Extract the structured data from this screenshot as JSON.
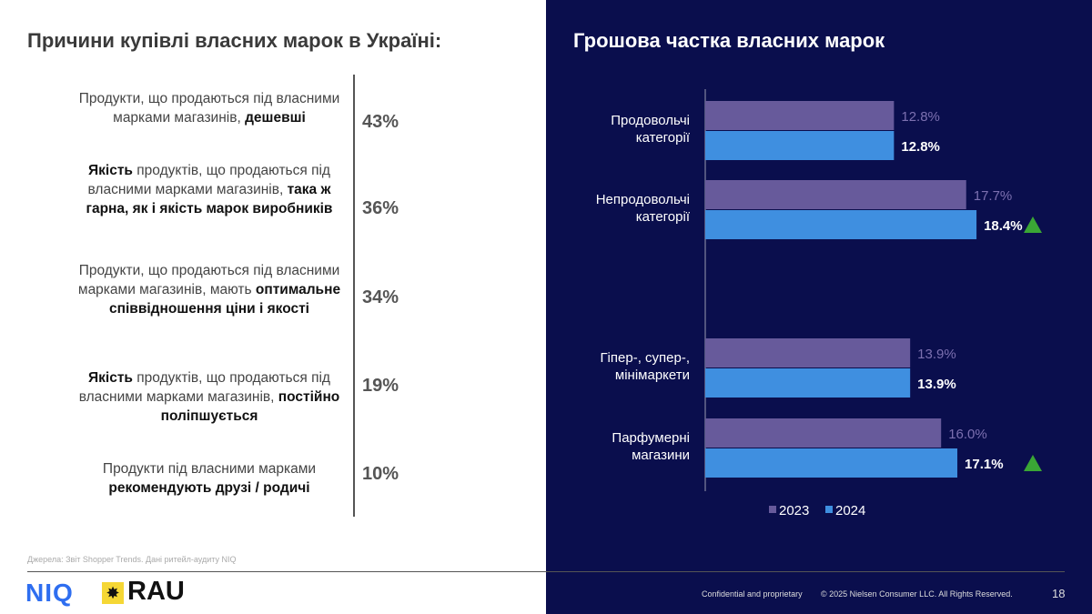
{
  "left": {
    "title": "Причини купівлі власних марок в Україні:",
    "reasons": [
      {
        "html": "Продукти, що продаються під власними марками магазинів, <b>дешевші</b>",
        "pct": "43%"
      },
      {
        "html": "<b>Якість</b> продуктів, що продаються під власними марками магазинів, <b>така ж гарна, як і якість марок виробників</b>",
        "pct": "36%"
      },
      {
        "html": "Продукти, що продаються під власними марками магазинів, мають <b>оптимальне співвідношення ціни і якості</b>",
        "pct": "34%"
      },
      {
        "html": "<b>Якість</b> продуктів, що продаються під власними марками магазинів, <b>постійно поліпшується</b>",
        "pct": "19%"
      },
      {
        "html": "Продукти під власними марками <b>рекомендують друзі / родичі</b>",
        "pct": "10%"
      }
    ],
    "source": "Джерела: Звіт Shopper Trends. Дані ритейл-аудиту NIQ"
  },
  "logos": {
    "niq": "NIQ",
    "rau": "RAU"
  },
  "footer": {
    "confidential": "Confidential and proprietary",
    "copyright": "© 2025 Nielsen Consumer LLC. All Rights Reserved.",
    "page": "18"
  },
  "colors": {
    "s2023": "#675a9b",
    "s2024": "#3f8fe0",
    "up": "#3aa635",
    "bg": "#0a0e4d"
  },
  "chart_data": {
    "type": "bar",
    "orientation": "horizontal",
    "title": "Грошова частка власних марок",
    "categories": [
      [
        "Продовольчі",
        "категорії"
      ],
      [
        "Непродовольчі",
        "категорії"
      ],
      [
        "Гіпер-, супер-,",
        "мінімаркети"
      ],
      [
        "Парфумерні",
        "магазини"
      ]
    ],
    "series": [
      {
        "name": "2023",
        "values": [
          12.8,
          17.7,
          13.9,
          16.0
        ]
      },
      {
        "name": "2024",
        "values": [
          12.8,
          18.4,
          13.9,
          17.1
        ]
      }
    ],
    "labels": {
      "2023": [
        "12.8%",
        "17.7%",
        "13.9%",
        "16.0%"
      ],
      "2024": [
        "12.8%",
        "18.4%",
        "13.9%",
        "17.1%"
      ]
    },
    "increase_marker": [
      false,
      true,
      false,
      true
    ],
    "legend": "bottom",
    "xlim": [
      0,
      25
    ]
  }
}
